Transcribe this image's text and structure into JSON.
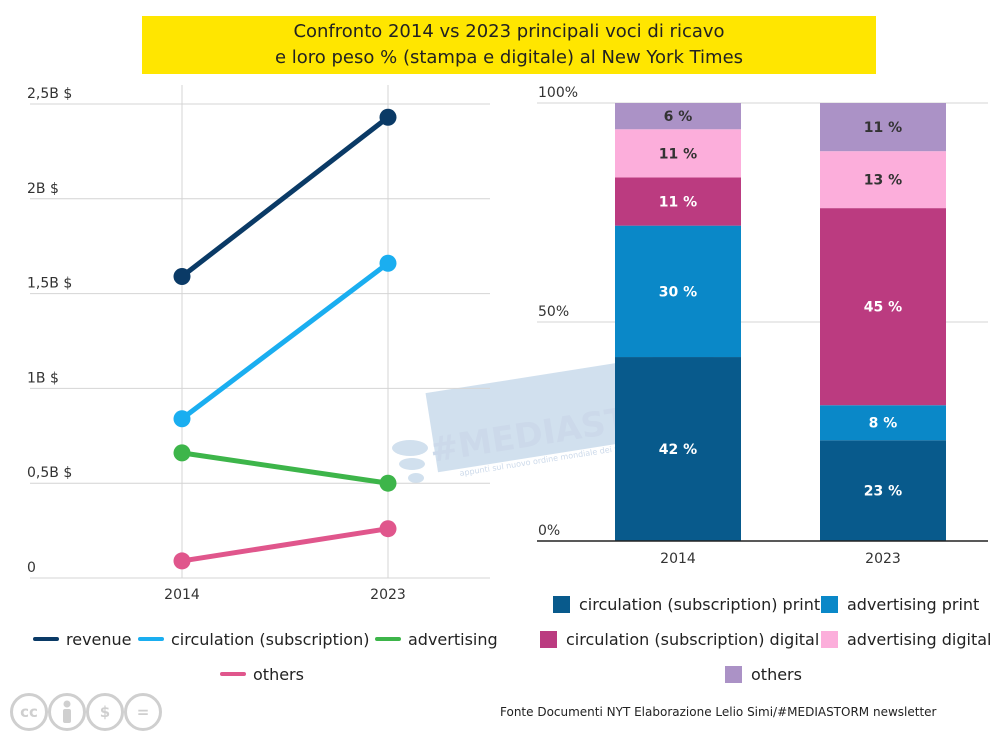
{
  "title": {
    "line1": "Confronto 2014 vs 2023 principali voci di ricavo",
    "line2": "e loro peso % (stampa e digitale) al New York Times"
  },
  "chart_data": [
    {
      "type": "line",
      "x": [
        "2014",
        "2023"
      ],
      "yticks": [
        "0",
        "0,5B $",
        "1B $",
        "1,5B $",
        "2B $",
        "2,5B $"
      ],
      "ylim": [
        0,
        2.5
      ],
      "grid": true,
      "legend_placement": "bottom",
      "series": [
        {
          "name": "revenue",
          "values": [
            1.59,
            2.43
          ],
          "color": "#0a3a66"
        },
        {
          "name": "circulation (subscription)",
          "values": [
            0.84,
            1.66
          ],
          "color": "#1aaef0"
        },
        {
          "name": "advertising",
          "values": [
            0.66,
            0.5
          ],
          "color": "#3db54a"
        },
        {
          "name": "others",
          "values": [
            0.09,
            0.26
          ],
          "color": "#e0568c"
        }
      ]
    },
    {
      "type": "bar",
      "stacked": true,
      "categories": [
        "2014",
        "2023"
      ],
      "yticks": [
        "0%",
        "50%",
        "100%"
      ],
      "ylim": [
        0,
        100
      ],
      "grid": true,
      "legend_placement": "bottom",
      "series": [
        {
          "name": "circulation (subscription) print",
          "values": [
            42,
            23
          ],
          "labels": [
            "42 %",
            "23 %"
          ],
          "color": "#085a8c",
          "label_color": "#ffffff"
        },
        {
          "name": "advertising print",
          "values": [
            30,
            8
          ],
          "labels": [
            "30 %",
            "8 %"
          ],
          "color": "#0a88c8",
          "label_color": "#ffffff"
        },
        {
          "name": "circulation (subscription) digital",
          "values": [
            11,
            45
          ],
          "labels": [
            "11 %",
            "45 %"
          ],
          "color": "#bb3b80",
          "label_color": "#ffffff"
        },
        {
          "name": "advertising digital",
          "values": [
            11,
            13
          ],
          "labels": [
            "11 %",
            "13 %"
          ],
          "color": "#fcaedb",
          "label_color": "#333333"
        },
        {
          "name": "others",
          "values": [
            6,
            11
          ],
          "labels": [
            "6 %",
            "11 %"
          ],
          "color": "#ab92c6",
          "label_color": "#333333"
        }
      ]
    }
  ],
  "watermark": {
    "text": "#MEDIASTORM",
    "tagline": "appunti sul nuovo ordine mondiale dei media"
  },
  "license": {
    "cc": "cc",
    "nc": "$",
    "nd": "="
  },
  "footer": "Fonte Documenti NYT Elaborazione Lelio Simi/#MEDIASTORM newsletter"
}
